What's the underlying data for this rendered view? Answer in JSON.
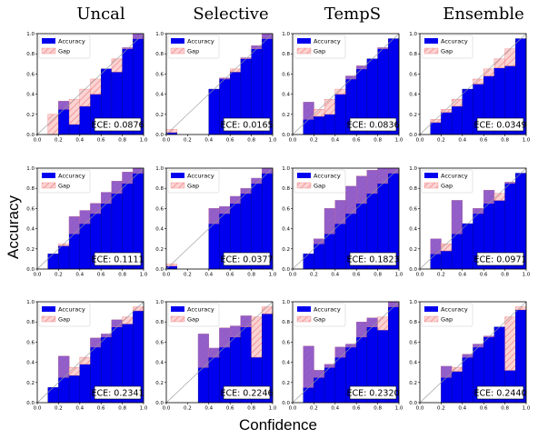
{
  "column_titles": [
    "Uncal",
    "Selective",
    "TempS",
    "Ensemble"
  ],
  "xlabel": "Confidence",
  "ylabel": "Accuracy",
  "legend": {
    "accuracy": "Accuracy",
    "gap": "Gap"
  },
  "colors": {
    "accuracy": "#0000ee",
    "overlap": "#8a55c8",
    "gap_fill": "#fcd3d3",
    "gap_hatch": "#f08080",
    "diagonal": "#999999"
  },
  "chart_data": [
    {
      "type": "bar",
      "ece": "ECE: 0.0876",
      "bins": [
        [
          0.15,
          0.0,
          0.2
        ],
        [
          0.25,
          0.33,
          0.25
        ],
        [
          0.35,
          0.1,
          0.35
        ],
        [
          0.45,
          0.28,
          0.45
        ],
        [
          0.55,
          0.4,
          0.55
        ],
        [
          0.65,
          0.65,
          0.65
        ],
        [
          0.75,
          0.62,
          0.75
        ],
        [
          0.85,
          0.86,
          0.85
        ],
        [
          0.95,
          1.0,
          0.95
        ]
      ],
      "xlim": [
        0,
        1
      ],
      "ylim": [
        0,
        1
      ],
      "xticks": [
        0,
        0.2,
        0.4,
        0.6,
        0.8,
        1
      ],
      "yticks": [
        0,
        0.2,
        0.4,
        0.6,
        0.8,
        1
      ]
    },
    {
      "type": "bar",
      "ece": "ECE: 0.0165",
      "bins": [
        [
          0.05,
          0.02,
          0.05
        ],
        [
          0.45,
          0.45,
          0.45
        ],
        [
          0.55,
          0.56,
          0.55
        ],
        [
          0.65,
          0.62,
          0.65
        ],
        [
          0.75,
          0.76,
          0.75
        ],
        [
          0.85,
          0.88,
          0.85
        ],
        [
          0.95,
          1.0,
          0.95
        ]
      ],
      "xlim": [
        0,
        1
      ],
      "ylim": [
        0,
        1
      ],
      "xticks": [
        0,
        0.2,
        0.4,
        0.6,
        0.8,
        1
      ],
      "yticks": [
        0,
        0.2,
        0.4,
        0.6,
        0.8,
        1
      ]
    },
    {
      "type": "bar",
      "ece": "ECE: 0.0836",
      "bins": [
        [
          0.15,
          0.32,
          0.15
        ],
        [
          0.25,
          0.18,
          0.25
        ],
        [
          0.35,
          0.2,
          0.35
        ],
        [
          0.45,
          0.4,
          0.45
        ],
        [
          0.55,
          0.58,
          0.55
        ],
        [
          0.65,
          0.68,
          0.65
        ],
        [
          0.75,
          0.75,
          0.75
        ],
        [
          0.85,
          0.86,
          0.85
        ],
        [
          0.95,
          0.95,
          0.95
        ]
      ],
      "xlim": [
        0,
        1
      ],
      "ylim": [
        0,
        1
      ],
      "xticks": [
        0,
        0.2,
        0.4,
        0.6,
        0.8,
        1
      ],
      "yticks": [
        0,
        0.2,
        0.4,
        0.6,
        0.8,
        1
      ]
    },
    {
      "type": "bar",
      "ece": "ECE: 0.0349",
      "bins": [
        [
          0.15,
          0.12,
          0.15
        ],
        [
          0.25,
          0.22,
          0.25
        ],
        [
          0.35,
          0.28,
          0.35
        ],
        [
          0.45,
          0.45,
          0.45
        ],
        [
          0.55,
          0.5,
          0.55
        ],
        [
          0.65,
          0.58,
          0.65
        ],
        [
          0.75,
          0.66,
          0.75
        ],
        [
          0.85,
          0.68,
          0.85
        ],
        [
          0.95,
          0.95,
          0.95
        ]
      ],
      "xlim": [
        0,
        1
      ],
      "ylim": [
        0,
        1
      ],
      "xticks": [
        0,
        0.2,
        0.4,
        0.6,
        0.8,
        1
      ],
      "yticks": [
        0,
        0.2,
        0.4,
        0.6,
        0.8,
        1
      ]
    },
    {
      "type": "bar",
      "ece": "ECE: 0.1111",
      "bins": [
        [
          0.15,
          0.15,
          0.15
        ],
        [
          0.25,
          0.23,
          0.25
        ],
        [
          0.35,
          0.52,
          0.35
        ],
        [
          0.45,
          0.58,
          0.45
        ],
        [
          0.55,
          0.65,
          0.55
        ],
        [
          0.65,
          0.76,
          0.65
        ],
        [
          0.75,
          0.87,
          0.75
        ],
        [
          0.85,
          0.96,
          0.85
        ],
        [
          0.95,
          1.0,
          0.95
        ]
      ],
      "xlim": [
        0,
        1
      ],
      "ylim": [
        0,
        1
      ],
      "xticks": [
        0,
        0.2,
        0.4,
        0.6,
        0.8,
        1
      ],
      "yticks": [
        0,
        0.2,
        0.4,
        0.6,
        0.8,
        1
      ]
    },
    {
      "type": "bar",
      "ece": "ECE: 0.0377",
      "bins": [
        [
          0.05,
          0.03,
          0.05
        ],
        [
          0.45,
          0.6,
          0.45
        ],
        [
          0.55,
          0.62,
          0.55
        ],
        [
          0.65,
          0.72,
          0.65
        ],
        [
          0.75,
          0.8,
          0.75
        ],
        [
          0.85,
          0.9,
          0.85
        ],
        [
          0.95,
          1.0,
          0.95
        ]
      ],
      "xlim": [
        0,
        1
      ],
      "ylim": [
        0,
        1
      ],
      "xticks": [
        0,
        0.2,
        0.4,
        0.6,
        0.8,
        1
      ],
      "yticks": [
        0,
        0.2,
        0.4,
        0.6,
        0.8,
        1
      ]
    },
    {
      "type": "bar",
      "ece": "ECE: 0.1823",
      "bins": [
        [
          0.15,
          0.15,
          0.15
        ],
        [
          0.25,
          0.3,
          0.25
        ],
        [
          0.35,
          0.6,
          0.35
        ],
        [
          0.45,
          0.68,
          0.45
        ],
        [
          0.55,
          0.82,
          0.55
        ],
        [
          0.65,
          0.92,
          0.65
        ],
        [
          0.75,
          0.98,
          0.75
        ],
        [
          0.85,
          1.0,
          0.85
        ],
        [
          0.95,
          1.0,
          0.95
        ]
      ],
      "xlim": [
        0,
        1
      ],
      "ylim": [
        0,
        1
      ],
      "xticks": [
        0,
        0.2,
        0.4,
        0.6,
        0.8,
        1
      ],
      "yticks": [
        0,
        0.2,
        0.4,
        0.6,
        0.8,
        1
      ]
    },
    {
      "type": "bar",
      "ece": "ECE: 0.0971",
      "bins": [
        [
          0.15,
          0.3,
          0.15
        ],
        [
          0.25,
          0.18,
          0.25
        ],
        [
          0.35,
          0.68,
          0.35
        ],
        [
          0.45,
          0.45,
          0.45
        ],
        [
          0.55,
          0.6,
          0.55
        ],
        [
          0.65,
          0.78,
          0.65
        ],
        [
          0.75,
          0.68,
          0.75
        ],
        [
          0.85,
          0.86,
          0.85
        ],
        [
          0.95,
          0.95,
          0.95
        ]
      ],
      "xlim": [
        0,
        1
      ],
      "ylim": [
        0,
        1
      ],
      "xticks": [
        0,
        0.2,
        0.4,
        0.6,
        0.8,
        1
      ],
      "yticks": [
        0,
        0.2,
        0.4,
        0.6,
        0.8,
        1
      ]
    },
    {
      "type": "bar",
      "ece": "ECE: 0.2341",
      "bins": [
        [
          0.15,
          0.15,
          0.15
        ],
        [
          0.25,
          0.46,
          0.25
        ],
        [
          0.35,
          0.27,
          0.35
        ],
        [
          0.45,
          0.38,
          0.45
        ],
        [
          0.55,
          0.64,
          0.55
        ],
        [
          0.65,
          0.68,
          0.65
        ],
        [
          0.75,
          0.82,
          0.75
        ],
        [
          0.85,
          0.78,
          0.85
        ],
        [
          0.95,
          0.91,
          0.95
        ]
      ],
      "xlim": [
        0,
        1
      ],
      "ylim": [
        0,
        1
      ],
      "xticks": [
        0,
        0.2,
        0.4,
        0.6,
        0.8,
        1
      ],
      "yticks": [
        0,
        0.2,
        0.4,
        0.6,
        0.8,
        1
      ]
    },
    {
      "type": "bar",
      "ece": "ECE: 0.2246",
      "bins": [
        [
          0.35,
          0.68,
          0.35
        ],
        [
          0.45,
          0.54,
          0.45
        ],
        [
          0.55,
          0.74,
          0.55
        ],
        [
          0.65,
          0.76,
          0.65
        ],
        [
          0.75,
          0.86,
          0.75
        ],
        [
          0.85,
          0.45,
          0.85
        ],
        [
          0.95,
          0.88,
          0.95
        ]
      ],
      "xlim": [
        0,
        1
      ],
      "ylim": [
        0,
        1
      ],
      "xticks": [
        0,
        0.2,
        0.4,
        0.6,
        0.8,
        1
      ],
      "yticks": [
        0,
        0.2,
        0.4,
        0.6,
        0.8,
        1
      ]
    },
    {
      "type": "bar",
      "ece": "ECE: 0.2320",
      "bins": [
        [
          0.15,
          0.56,
          0.15
        ],
        [
          0.25,
          0.32,
          0.25
        ],
        [
          0.35,
          0.38,
          0.35
        ],
        [
          0.45,
          0.55,
          0.45
        ],
        [
          0.55,
          0.58,
          0.55
        ],
        [
          0.65,
          0.8,
          0.65
        ],
        [
          0.75,
          0.84,
          0.75
        ],
        [
          0.85,
          0.72,
          0.85
        ],
        [
          0.95,
          1.0,
          0.95
        ]
      ],
      "xlim": [
        0,
        1
      ],
      "ylim": [
        0,
        1
      ],
      "xticks": [
        0,
        0.2,
        0.4,
        0.6,
        0.8,
        1
      ],
      "yticks": [
        0,
        0.2,
        0.4,
        0.6,
        0.8,
        1
      ]
    },
    {
      "type": "bar",
      "ece": "ECE: 0.2440",
      "bins": [
        [
          0.25,
          0.36,
          0.25
        ],
        [
          0.35,
          0.31,
          0.35
        ],
        [
          0.45,
          0.48,
          0.45
        ],
        [
          0.55,
          0.58,
          0.55
        ],
        [
          0.65,
          0.66,
          0.65
        ],
        [
          0.75,
          0.75,
          0.75
        ],
        [
          0.85,
          0.32,
          0.85
        ],
        [
          0.95,
          0.92,
          0.95
        ]
      ],
      "xlim": [
        0,
        1
      ],
      "ylim": [
        0,
        1
      ],
      "xticks": [
        0,
        0.2,
        0.4,
        0.6,
        0.8,
        1
      ],
      "yticks": [
        0,
        0.2,
        0.4,
        0.6,
        0.8,
        1
      ]
    }
  ]
}
